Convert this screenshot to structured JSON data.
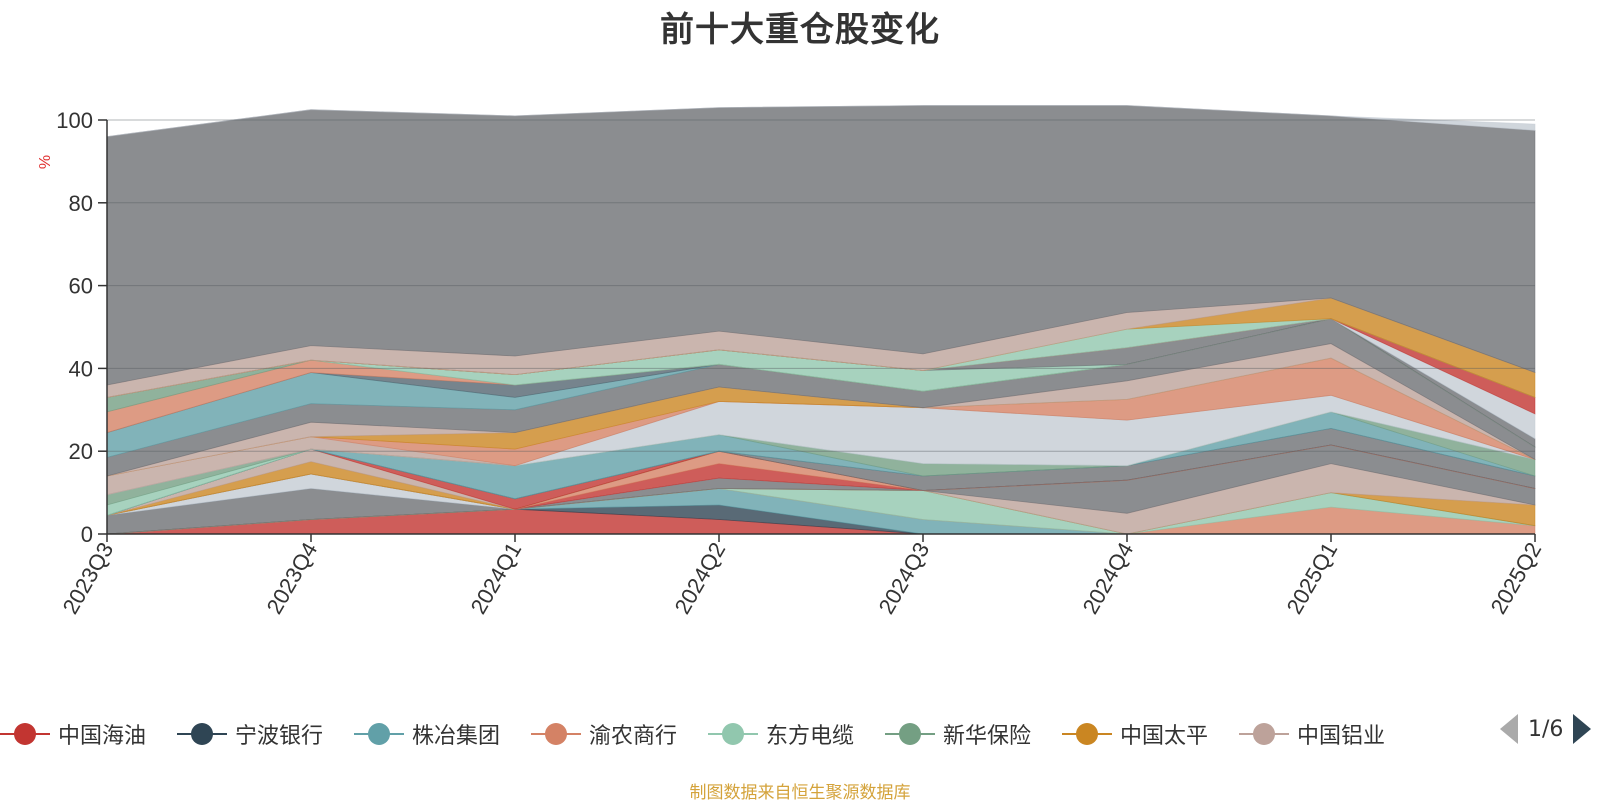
{
  "chart_data": {
    "type": "area",
    "title": "前十大重仓股变化",
    "ylabel": "%",
    "ylim": [
      0,
      100
    ],
    "yticks": [
      "0",
      "20",
      "40",
      "60",
      "80",
      "100"
    ],
    "categories": [
      "2023Q3",
      "2023Q4",
      "2024Q1",
      "2024Q2",
      "2024Q3",
      "2024Q4",
      "2025Q1",
      "2025Q2"
    ],
    "grid": true,
    "legend_position": "bottom",
    "legend_page": "1/6",
    "series": [
      {
        "name": "中国海油",
        "color": "#c23531",
        "values": [
          0,
          3.5,
          6,
          3.5,
          0,
          0,
          0,
          0
        ]
      },
      {
        "name": "宁波银行",
        "color": "#2f4554",
        "values": [
          0,
          0,
          0,
          3.5,
          0,
          0,
          0,
          0
        ]
      },
      {
        "name": "株冶集团",
        "color": "#61a0a8",
        "values": [
          0,
          0,
          0,
          4,
          3.5,
          0,
          0,
          0
        ]
      },
      {
        "name": "渝农商行",
        "color": "#d48265",
        "values": [
          0,
          0,
          0,
          0,
          0,
          0,
          6.5,
          2
        ]
      },
      {
        "name": "东方电缆",
        "color": "#91c7ae",
        "values": [
          0,
          0,
          0,
          0,
          7,
          0,
          3.5,
          0
        ]
      },
      {
        "name": "新华保险",
        "color": "#749f83",
        "values": [
          0,
          0,
          0,
          0,
          0,
          0,
          0,
          0
        ]
      },
      {
        "name": "中国太平",
        "color": "#ca8622",
        "values": [
          0,
          0,
          0,
          0,
          0,
          0,
          0,
          5
        ]
      },
      {
        "name": "中国铝业",
        "color": "#bda29a",
        "values": [
          0,
          0,
          0,
          0,
          0,
          5,
          7,
          0
        ]
      },
      {
        "name": "",
        "color": "#6e7074",
        "values": [
          4.5,
          7.5,
          0,
          2.5,
          0,
          8,
          4.5,
          4
        ]
      },
      {
        "name": "",
        "color": "#546570",
        "values": [
          0,
          0,
          0,
          0,
          0,
          0,
          0,
          0
        ]
      },
      {
        "name": "",
        "color": "#c4ccd3",
        "values": [
          0,
          3.5,
          0,
          0,
          0,
          0,
          0,
          0
        ]
      },
      {
        "name": "",
        "color": "#c23531",
        "values": [
          0,
          0,
          0,
          3.5,
          0,
          0,
          0,
          0
        ]
      },
      {
        "name": "",
        "color": "#d48265",
        "values": [
          0,
          0,
          0,
          3,
          0,
          0,
          0,
          0
        ]
      },
      {
        "name": "",
        "color": "#91c7ae",
        "values": [
          0,
          0,
          0,
          0,
          0,
          0,
          0,
          0
        ]
      },
      {
        "name": "",
        "color": "#ca8622",
        "values": [
          0,
          3,
          0,
          0,
          0,
          0,
          0,
          0
        ]
      },
      {
        "name": "",
        "color": "#bda29a",
        "values": [
          0,
          3,
          0,
          0,
          0,
          0,
          0,
          0
        ]
      },
      {
        "name": "",
        "color": "#c23531",
        "values": [
          0,
          0,
          2.5,
          0,
          0,
          0,
          0,
          0
        ]
      },
      {
        "name": "",
        "color": "#6e7074",
        "values": [
          0,
          0,
          0,
          0,
          3.5,
          3.5,
          4,
          3
        ]
      },
      {
        "name": "",
        "color": "#546570",
        "values": [
          0,
          0,
          0,
          0,
          0,
          0,
          0,
          0
        ]
      },
      {
        "name": "",
        "color": "#61a0a8",
        "values": [
          0,
          0,
          8,
          4,
          0,
          0,
          4,
          0
        ]
      },
      {
        "name": "",
        "color": "#749f83",
        "values": [
          0,
          0,
          0,
          0,
          3,
          0,
          0,
          4
        ]
      },
      {
        "name": "",
        "color": "#91c7ae",
        "values": [
          2.5,
          0,
          0,
          0,
          0,
          0,
          0,
          0
        ]
      },
      {
        "name": "",
        "color": "#749f83",
        "values": [
          2.5,
          0,
          0,
          0,
          0,
          0,
          0,
          0
        ]
      },
      {
        "name": "",
        "color": "#c4ccd3",
        "values": [
          0,
          0,
          0,
          8,
          13.5,
          11,
          4,
          0
        ]
      },
      {
        "name": "",
        "color": "#bda29a",
        "values": [
          4.5,
          3,
          0,
          0,
          0,
          0,
          0,
          0
        ]
      },
      {
        "name": "",
        "color": "#d48265",
        "values": [
          0,
          0,
          4,
          0,
          0,
          5,
          9,
          0
        ]
      },
      {
        "name": "",
        "color": "#ca8622",
        "values": [
          0,
          0,
          4,
          3.5,
          0,
          0,
          0,
          0
        ]
      },
      {
        "name": "",
        "color": "#bda29a",
        "values": [
          0,
          3.5,
          0,
          0,
          0,
          4.5,
          3.5,
          0
        ]
      },
      {
        "name": "",
        "color": "#6e7074",
        "values": [
          4.5,
          4.5,
          5.5,
          5.5,
          4,
          4,
          6,
          3
        ]
      },
      {
        "name": "",
        "color": "#61a0a8",
        "values": [
          6,
          7.5,
          3,
          0,
          0,
          0,
          0,
          0
        ]
      },
      {
        "name": "",
        "color": "#546570",
        "values": [
          0,
          0,
          3,
          0,
          0,
          0,
          0,
          0
        ]
      },
      {
        "name": "",
        "color": "#d48265",
        "values": [
          5,
          3,
          0,
          0,
          0,
          0,
          0,
          0
        ]
      },
      {
        "name": "",
        "color": "#749f83",
        "values": [
          3.5,
          0,
          0,
          0,
          0,
          0,
          0,
          0
        ]
      },
      {
        "name": "",
        "color": "#91c7ae",
        "values": [
          0,
          0,
          2.5,
          3.5,
          5,
          0,
          0,
          0
        ]
      },
      {
        "name": "",
        "color": "#6e7074",
        "values": [
          0,
          0,
          0,
          0,
          0,
          4,
          0,
          2
        ]
      },
      {
        "name": "",
        "color": "#546570",
        "values": [
          0,
          0,
          0,
          0,
          0,
          0,
          0,
          0
        ]
      },
      {
        "name": "",
        "color": "#c4ccd3",
        "values": [
          0,
          0,
          0,
          0,
          0,
          0,
          0,
          6
        ]
      },
      {
        "name": "",
        "color": "#c23531",
        "values": [
          0,
          0,
          0,
          0,
          0,
          0,
          0,
          4
        ]
      },
      {
        "name": "",
        "color": "#91c7ae",
        "values": [
          0,
          0,
          0,
          0,
          0,
          4.5,
          0,
          0
        ]
      },
      {
        "name": "",
        "color": "#ca8622",
        "values": [
          0,
          0,
          0,
          0,
          0,
          0,
          5,
          6
        ]
      },
      {
        "name": "",
        "color": "#bda29a",
        "values": [
          3,
          3.5,
          4.5,
          4.5,
          4,
          4,
          0,
          0
        ]
      },
      {
        "name": "",
        "color": "#6e7074",
        "values": [
          60,
          57,
          58,
          54,
          60,
          50,
          44,
          58.5
        ]
      },
      {
        "name": "",
        "color": "#c4ccd3",
        "values": [
          0,
          0,
          0,
          0,
          0,
          0,
          0,
          1.5
        ]
      }
    ]
  },
  "footer": {
    "source": "制图数据来自恒生聚源数据库"
  }
}
